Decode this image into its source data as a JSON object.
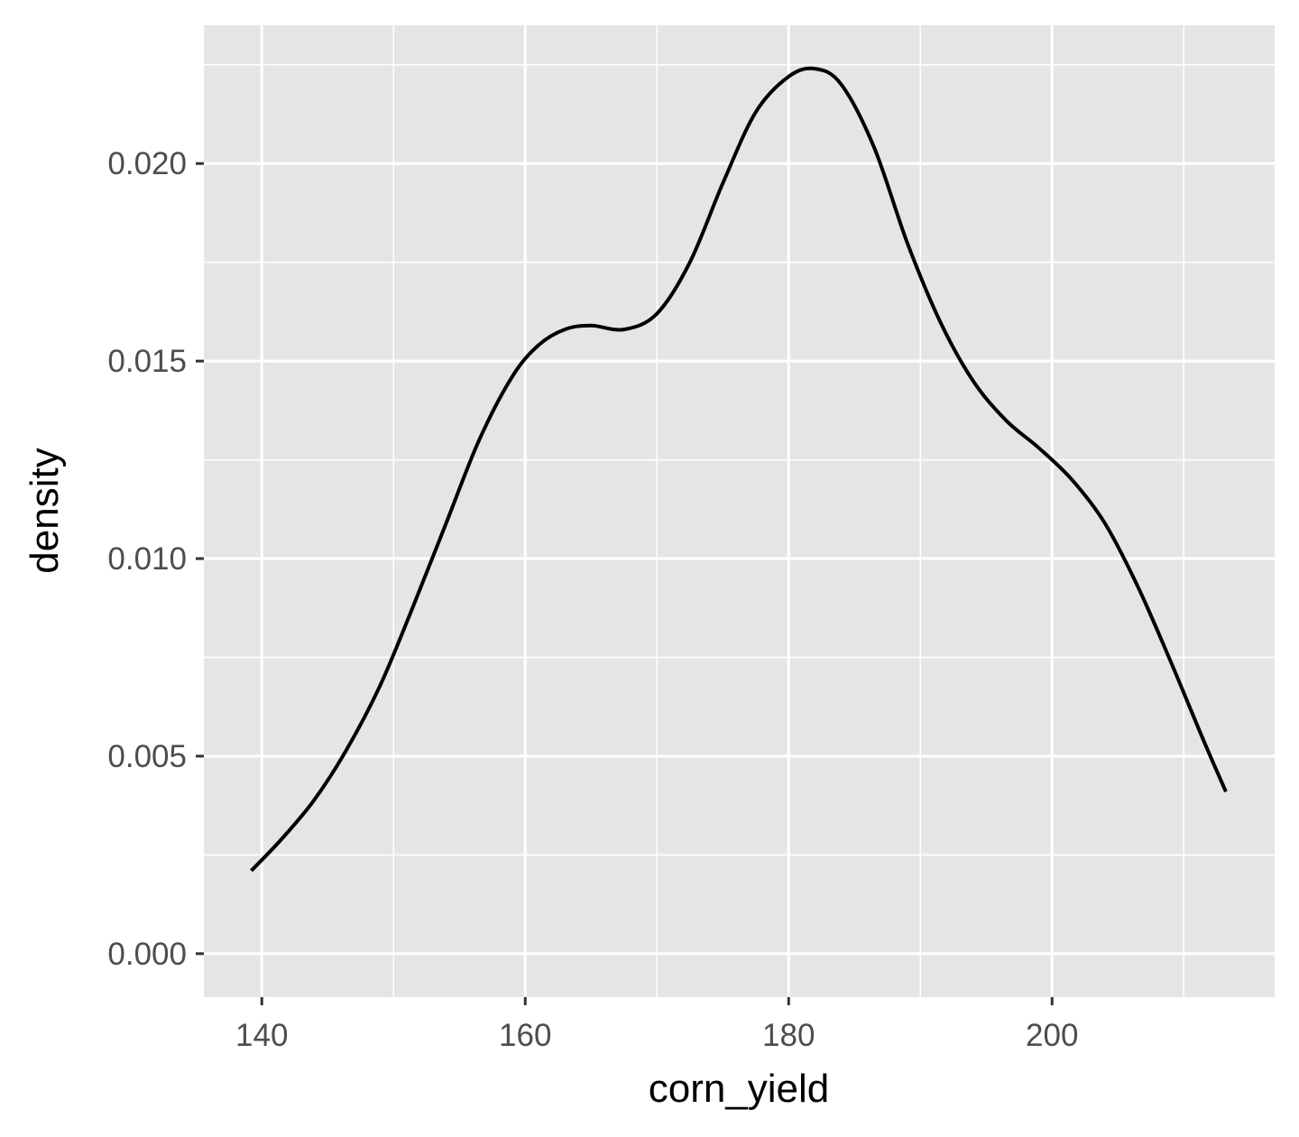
{
  "chart_data": {
    "type": "line",
    "title": "",
    "xlabel": "corn_yield",
    "ylabel": "density",
    "xlim": [
      135.6,
      216.9
    ],
    "ylim": [
      -0.0011,
      0.0235
    ],
    "x_ticks": [
      140,
      160,
      180,
      200
    ],
    "x_tick_labels": [
      "140",
      "160",
      "180",
      "200"
    ],
    "y_ticks": [
      0.0,
      0.005,
      0.01,
      0.015,
      0.02
    ],
    "y_tick_labels": [
      "0.000",
      "0.005",
      "0.010",
      "0.015",
      "0.020"
    ],
    "grid": true,
    "legend": "none",
    "colors": {
      "panel": "#e5e5e5",
      "grid": "#ffffff",
      "line": "#000000"
    },
    "series": [
      {
        "x": [
          139.2,
          141.5,
          144.0,
          146.5,
          149.0,
          151.5,
          154.0,
          156.5,
          159.0,
          161.0,
          163.0,
          165.0,
          167.5,
          170.0,
          172.5,
          175.0,
          177.5,
          180.0,
          182.0,
          184.0,
          186.5,
          189.0,
          191.5,
          194.0,
          196.5,
          199.0,
          201.5,
          204.0,
          206.5,
          209.0,
          211.5,
          213.2
        ],
        "y": [
          0.0021,
          0.0029,
          0.0039,
          0.0052,
          0.0068,
          0.0088,
          0.0109,
          0.013,
          0.0146,
          0.0154,
          0.0158,
          0.0159,
          0.0158,
          0.0162,
          0.0175,
          0.0195,
          0.0213,
          0.0222,
          0.0224,
          0.022,
          0.0204,
          0.018,
          0.016,
          0.0145,
          0.0135,
          0.0128,
          0.012,
          0.0109,
          0.0093,
          0.0074,
          0.0054,
          0.0041
        ]
      }
    ]
  }
}
